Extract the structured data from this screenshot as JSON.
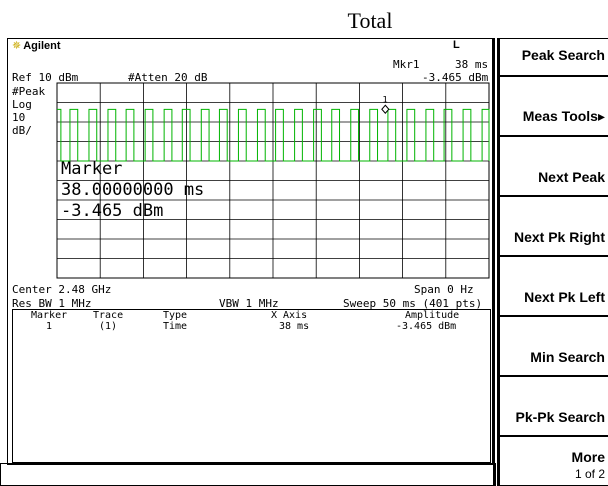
{
  "figure_title": "Total",
  "header": {
    "brand": "Agilent",
    "indicator": "L",
    "marker_label": "Mkr1",
    "marker_x": "38 ms",
    "marker_y": "-3.465 dBm",
    "ref_level": "Ref 10 dBm",
    "atten": "#Atten 20 dB"
  },
  "left_labels": [
    "#Peak",
    "Log",
    "10",
    "dB/"
  ],
  "marker_readout": {
    "title": "Marker",
    "x": "38.00000000 ms",
    "y": "-3.465 dBm",
    "marker_number": "1"
  },
  "footer": {
    "center": "Center 2.48 GHz",
    "span": "Span 0 Hz",
    "res_bw": "Res BW 1 MHz",
    "vbw": "VBW 1 MHz",
    "sweep": "Sweep 50 ms (401 pts)"
  },
  "marker_table": {
    "headers": [
      "Marker",
      "Trace",
      "Type",
      "X Axis",
      "Amplitude"
    ],
    "rows": [
      [
        "1",
        "(1)",
        "Time",
        "38 ms",
        "-3.465 dBm"
      ]
    ]
  },
  "softkeys": [
    {
      "label": "Peak Search"
    },
    {
      "label": "Meas Tools▸"
    },
    {
      "label": "Next Peak"
    },
    {
      "label": "Next Pk Right"
    },
    {
      "label": "Next Pk Left"
    },
    {
      "label": "Min Search"
    },
    {
      "label": "Pk-Pk Search"
    },
    {
      "label": "More",
      "sub": "1 of 2"
    }
  ],
  "chart_data": {
    "type": "line",
    "x_unit": "ms",
    "xlim": [
      0,
      50
    ],
    "ylim": [
      -90,
      10
    ],
    "ylabel": "dBm",
    "grid": true,
    "series": [
      {
        "color": "#00b400",
        "high_level_dBm": -3.5,
        "low_level_dBm": -30,
        "pulses": [
          [
            0.0,
            0.45
          ],
          [
            1.5,
            2.4
          ],
          [
            3.7,
            4.6
          ],
          [
            5.9,
            6.8
          ],
          [
            8.0,
            8.9
          ],
          [
            10.2,
            11.1
          ],
          [
            12.4,
            13.3
          ],
          [
            14.5,
            15.4
          ],
          [
            16.7,
            17.6
          ],
          [
            18.8,
            19.7
          ],
          [
            21.0,
            21.9
          ],
          [
            23.2,
            24.1
          ],
          [
            25.3,
            26.2
          ],
          [
            27.5,
            28.4
          ],
          [
            29.7,
            30.6
          ],
          [
            31.8,
            32.7
          ],
          [
            34.0,
            34.9
          ],
          [
            36.2,
            37.1
          ],
          [
            38.3,
            39.2
          ],
          [
            40.5,
            41.4
          ],
          [
            42.7,
            43.6
          ],
          [
            44.8,
            45.7
          ],
          [
            47.0,
            47.9
          ],
          [
            49.2,
            50.0
          ]
        ]
      }
    ],
    "marker": {
      "x": 38,
      "y": -3.465,
      "label": "1"
    }
  }
}
